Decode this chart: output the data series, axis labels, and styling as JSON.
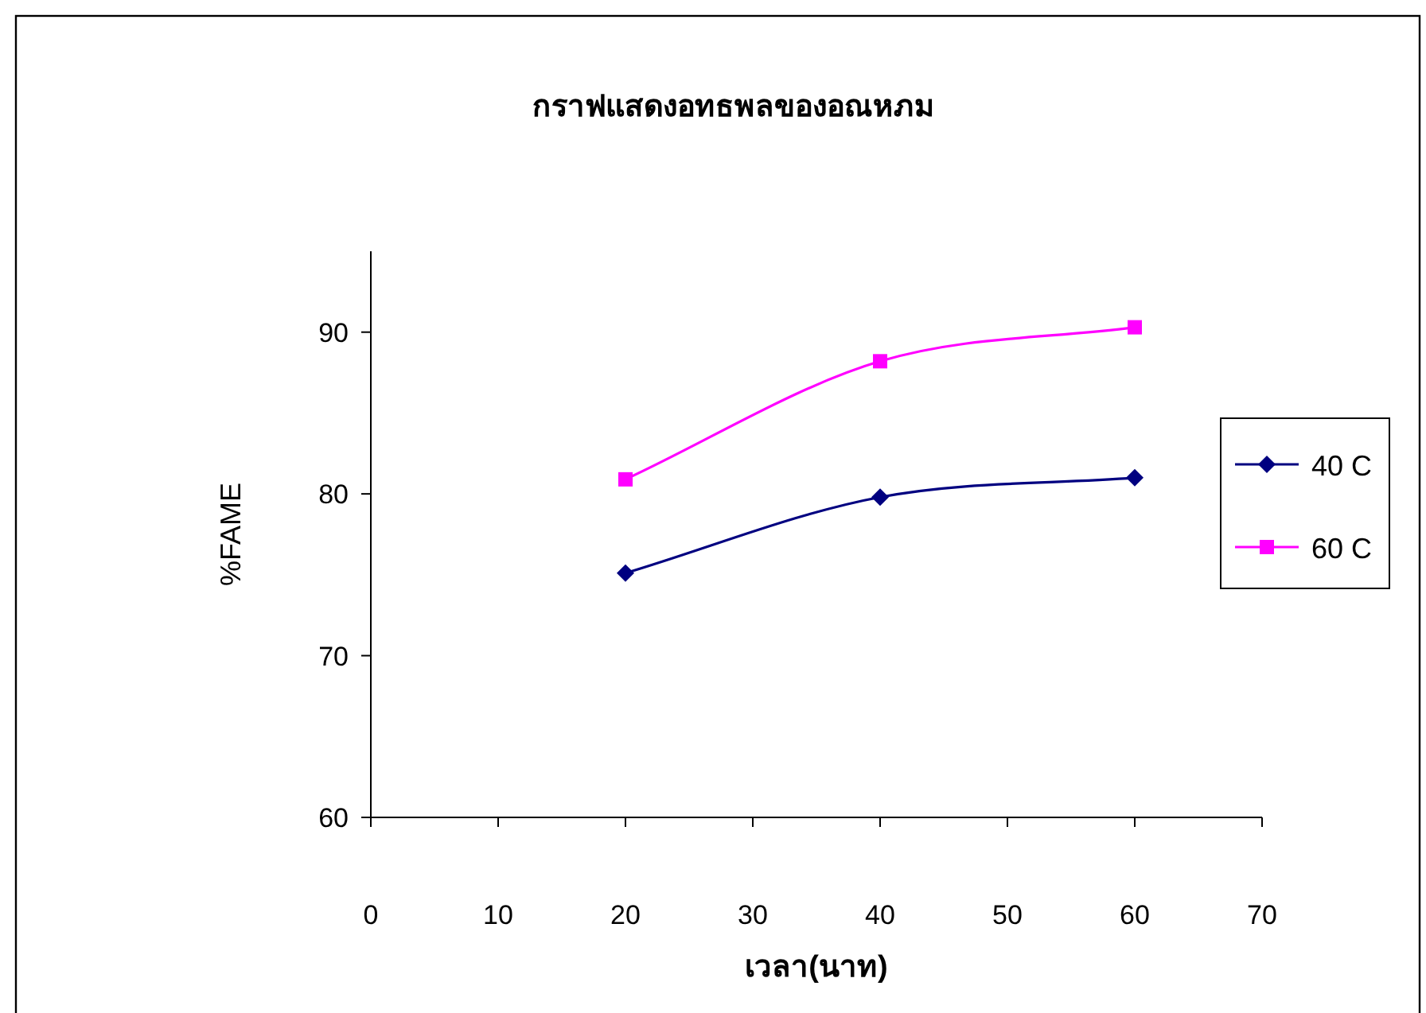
{
  "chart_data": {
    "type": "line",
    "title": "กราฟแสดงอทธพลของอณหภม",
    "xlabel": "เวลา(นาท)",
    "ylabel": "%FAME",
    "x": [
      20,
      40,
      60
    ],
    "series": [
      {
        "name": "40 C",
        "color": "#000080",
        "marker": "diamond",
        "values": [
          75.1,
          79.8,
          81.0
        ]
      },
      {
        "name": "60 C",
        "color": "#ff00ff",
        "marker": "square",
        "values": [
          80.9,
          88.2,
          90.3
        ]
      }
    ],
    "xlim": [
      0,
      70
    ],
    "xticks": [
      0,
      10,
      20,
      30,
      40,
      50,
      60,
      70
    ],
    "ylim": [
      60,
      95
    ],
    "yticks": [
      60,
      70,
      80,
      90
    ],
    "grid": false,
    "legend": "right",
    "line_style": "solid"
  }
}
